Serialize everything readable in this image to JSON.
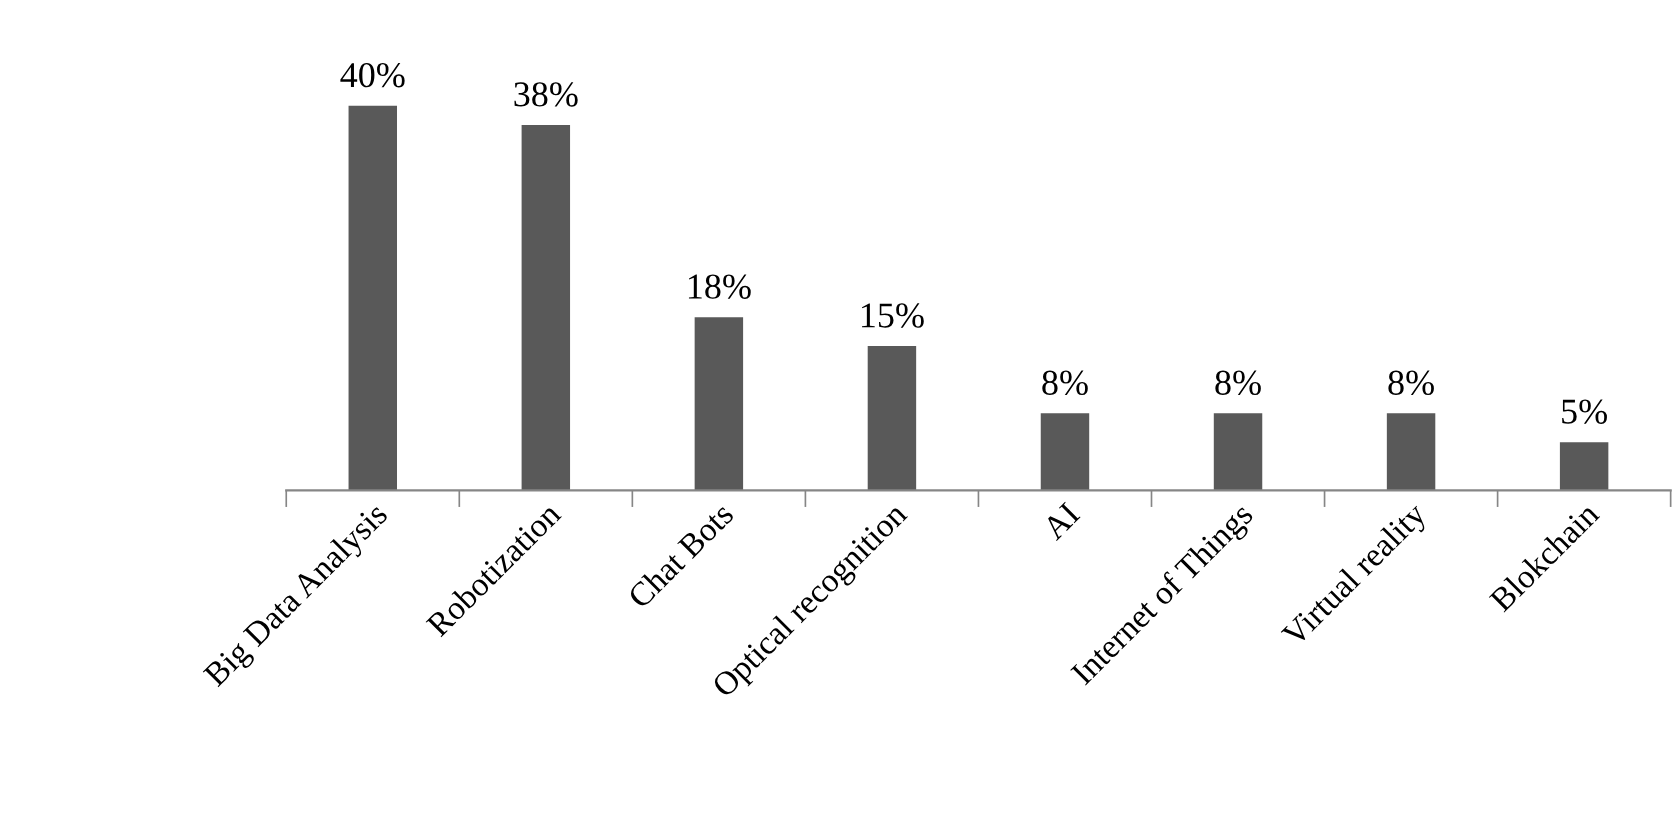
{
  "chart_data": {
    "type": "bar",
    "categories": [
      "Big Data Analysis",
      "Robotization",
      "Chat Bots",
      "Optical recognition",
      "AI",
      "Internet of Things",
      "Virtual reality",
      "Blokchain"
    ],
    "values": [
      40,
      38,
      18,
      15,
      8,
      8,
      8,
      5
    ],
    "value_labels": [
      "40%",
      "38%",
      "18%",
      "15%",
      "8%",
      "8%",
      "8%",
      "5%"
    ],
    "color": "#595959",
    "grid": false,
    "legend": false,
    "tick_labels": "x"
  }
}
